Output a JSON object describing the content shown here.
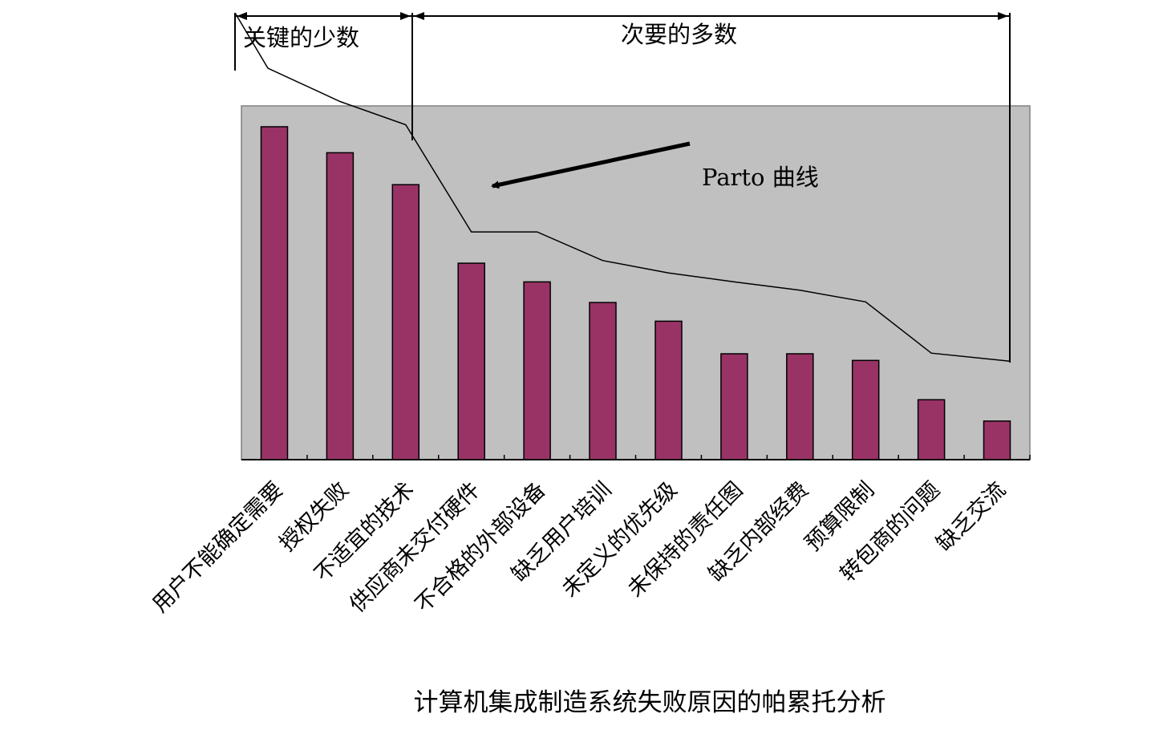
{
  "chart_data": {
    "type": "bar",
    "title": "计算机集成制造系统失败原因的帕累托分析",
    "categories": [
      "用户不能确定需要",
      "授权失败",
      "不适宜的技术",
      "供应商未交付硬件",
      "不合格的外部设备",
      "缺乏用户培训",
      "未定义的优先级",
      "未保持的责任图",
      "缺乏内部经费",
      "预算限制",
      "转包商的问题",
      "缺乏交流"
    ],
    "values": [
      100,
      92.2,
      82.6,
      59,
      53.4,
      47.2,
      41.6,
      31.8,
      31.8,
      29.8,
      18.0,
      11.6
    ],
    "ylim": [
      0,
      100
    ],
    "cumulative_line": {
      "name": "Parto 曲线",
      "values": [
        117.6,
        107.6,
        100.6,
        68.4,
        68.4,
        59.8,
        56.1,
        53.4,
        50.9,
        47.4,
        32.0,
        29.6
      ]
    },
    "annotations": {
      "vital_few": "关键的少数",
      "trivial_many": "次要的多数",
      "curve_label": "Parto 曲线"
    },
    "colors": {
      "bar": "#993366",
      "plot_background": "#c0c0c0",
      "line": "#000000"
    }
  }
}
